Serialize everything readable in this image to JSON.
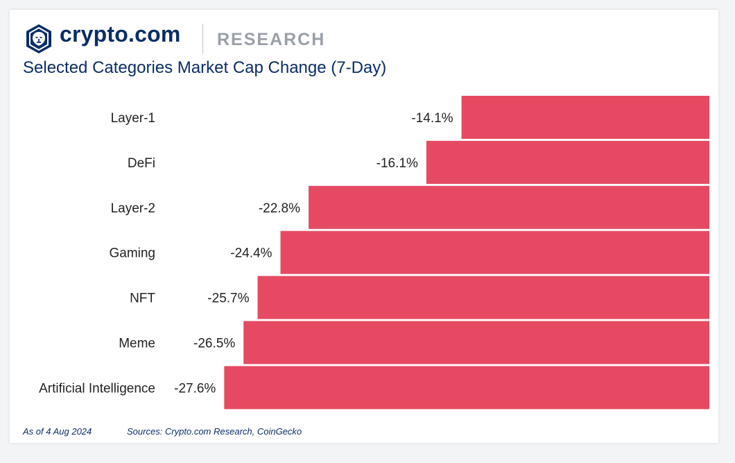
{
  "header": {
    "brand": "crypto.com",
    "section": "RESEARCH",
    "logo_icon": "crypto-com-lion-shield-icon"
  },
  "colors": {
    "brand_navy": "#0b2d67",
    "bar": "#e64a62",
    "section_gray": "#9aa0a8"
  },
  "chart_data": {
    "type": "bar",
    "orientation": "horizontal",
    "title": "Selected Categories Market Cap Change (7-Day)",
    "categories": [
      "Layer-1",
      "DeFi",
      "Layer-2",
      "Gaming",
      "NFT",
      "Meme",
      "Artificial Intelligence"
    ],
    "values": [
      -14.1,
      -16.1,
      -22.8,
      -24.4,
      -25.7,
      -26.5,
      -27.6
    ],
    "value_labels": [
      "-14.1%",
      "-16.1%",
      "-22.8%",
      "-24.4%",
      "-25.7%",
      "-26.5%",
      "-27.6%"
    ],
    "xlim": [
      -30,
      0
    ],
    "grid": false,
    "legend": false
  },
  "footer": {
    "date": "As of 4 Aug 2024",
    "sources": "Sources: Crypto.com Research, CoinGecko"
  }
}
